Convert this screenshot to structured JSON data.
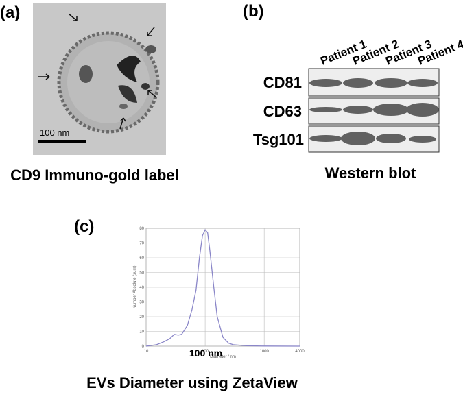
{
  "panel_a": {
    "label": "(a)",
    "scale_bar": "100 nm",
    "caption": "CD9 Immuno-gold label"
  },
  "panel_b": {
    "label": "(b)",
    "lanes": [
      "Patient 1",
      "Patient 2",
      "Patient 3",
      "Patient 4"
    ],
    "bands": [
      "CD81",
      "CD63",
      "Tsg101"
    ],
    "caption": "Western blot"
  },
  "panel_c": {
    "label": "(c)",
    "annotation": "100 nm",
    "caption": "EVs Diameter using ZetaView"
  },
  "chart_data": {
    "type": "line",
    "xlabel": "Diameter / nm",
    "ylabel": "Number Absolute (sum)",
    "x": [
      10,
      15,
      20,
      25,
      30,
      35,
      40,
      50,
      60,
      70,
      80,
      90,
      100,
      110,
      120,
      140,
      160,
      200,
      250,
      300,
      500,
      1000,
      4000
    ],
    "values": [
      0,
      1,
      3,
      5,
      8,
      7.5,
      8,
      14,
      25,
      38,
      60,
      75,
      79,
      77,
      65,
      40,
      20,
      6,
      2,
      1,
      0.3,
      0.1,
      0
    ],
    "color": "#8a86c8",
    "xlim": [
      10,
      4000
    ],
    "ylim": [
      0,
      80
    ],
    "xticks": [
      10,
      100,
      1000,
      4000
    ],
    "yticks": [
      0,
      10,
      20,
      30,
      40,
      50,
      60,
      70,
      80
    ],
    "xlog": true,
    "grid": true
  }
}
